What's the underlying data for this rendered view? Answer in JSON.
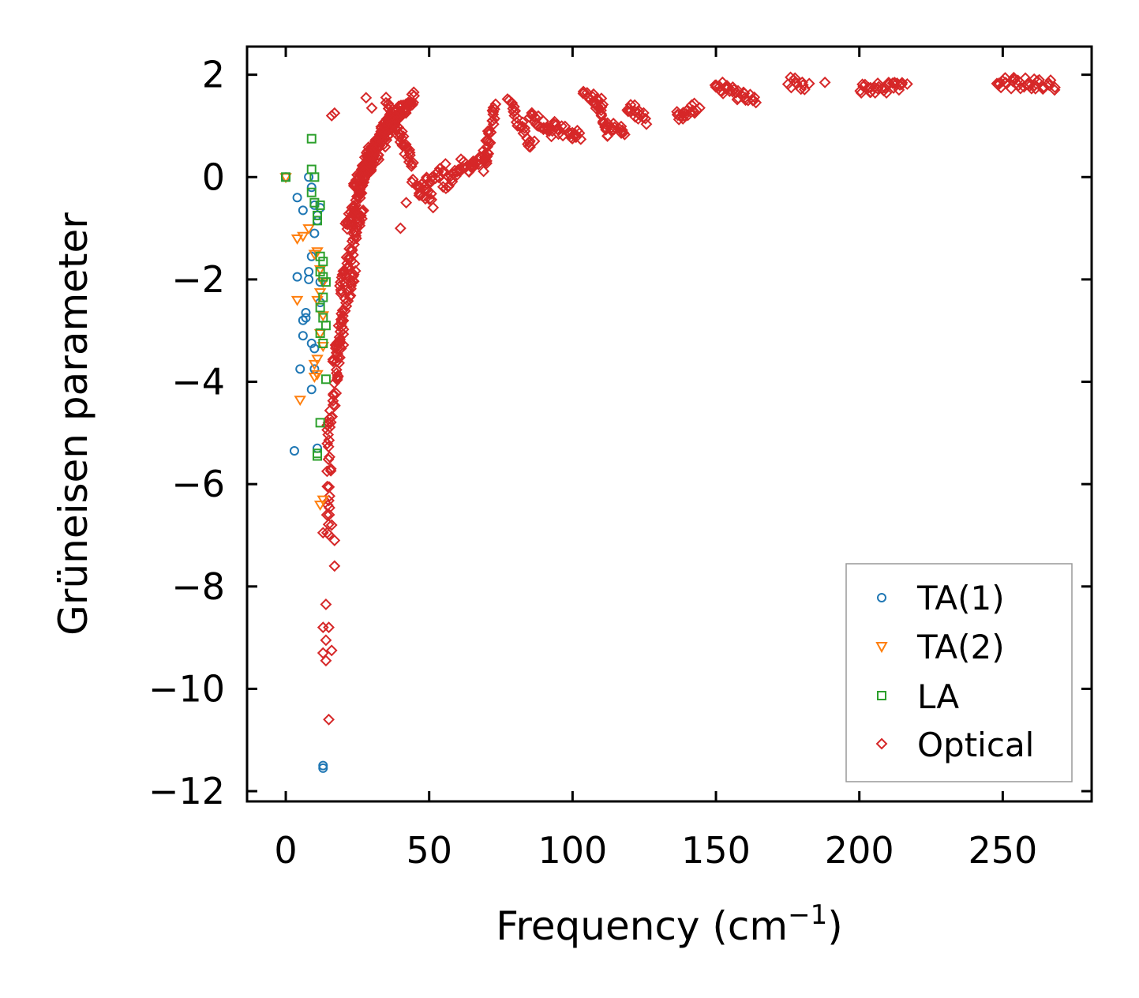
{
  "chart_data": {
    "type": "scatter",
    "title": "",
    "xlabel": "Frequency (cm",
    "xlabel_superscript": "−1",
    "xlabel_suffix": ")",
    "ylabel": "Grüneisen parameter",
    "xlim": [
      -13.5,
      281
    ],
    "ylim": [
      -12.2,
      2.55
    ],
    "xticks": [
      0,
      50,
      100,
      150,
      200,
      250
    ],
    "yticks": [
      2,
      0,
      -2,
      -4,
      -6,
      -8,
      -10,
      -12
    ],
    "ytick_labels": [
      "2",
      "0",
      "−2",
      "−4",
      "−6",
      "−8",
      "−10",
      "−12"
    ],
    "grid": false,
    "legend_position": "lower-right",
    "series": [
      {
        "name": "TA(1)",
        "marker": "circle",
        "color": "#1f77b4",
        "x": [
          0,
          4,
          6,
          8,
          9,
          10,
          11,
          12,
          11,
          10,
          9,
          8,
          4,
          12,
          7,
          7,
          6,
          6,
          9,
          10,
          10,
          5,
          9,
          8,
          3,
          11,
          13,
          13,
          12
        ],
        "y": [
          0,
          -0.4,
          -0.65,
          0,
          -0.2,
          -0.55,
          -0.75,
          -0.6,
          -0.85,
          -1.1,
          -1.55,
          -1.85,
          -1.95,
          -2.05,
          -2.65,
          -2.75,
          -2.8,
          -3.1,
          -3.25,
          -3.35,
          -3.75,
          -3.75,
          -4.15,
          -2.0,
          -5.35,
          -5.3,
          -11.5,
          -11.55,
          -2.45
        ]
      },
      {
        "name": "TA(2)",
        "marker": "triangle",
        "color": "#ff7f0e",
        "x": [
          0,
          4,
          6,
          8,
          10,
          11,
          12,
          13,
          12,
          11,
          4,
          13,
          12,
          13,
          11,
          10,
          10,
          5,
          11,
          13,
          12
        ],
        "y": [
          0,
          -1.2,
          -1.15,
          -1.0,
          -1.5,
          -1.45,
          -1.8,
          -2.05,
          -2.25,
          -2.4,
          -2.4,
          -2.7,
          -3.05,
          -3.3,
          -3.55,
          -3.65,
          -3.9,
          -4.35,
          -3.85,
          -6.3,
          -6.4
        ]
      },
      {
        "name": "LA",
        "marker": "square",
        "color": "#2ca02c",
        "x": [
          0,
          9,
          9,
          9,
          10,
          11,
          12,
          11,
          12,
          13,
          12,
          13,
          14,
          13,
          12,
          13,
          14,
          12,
          13,
          14,
          12,
          11,
          11,
          10
        ],
        "y": [
          0,
          0.75,
          0.15,
          -0.3,
          -0.5,
          -0.75,
          -0.55,
          -0.85,
          -1.55,
          -1.65,
          -1.85,
          -1.95,
          -2.05,
          -2.35,
          -2.55,
          -2.75,
          -2.9,
          -3.05,
          -3.25,
          -3.95,
          -4.8,
          -5.4,
          -5.45,
          0.0
        ]
      },
      {
        "name": "Optical",
        "marker": "diamond",
        "color": "#d62728",
        "clusters": [
          {
            "x0": 15,
            "y0": -7.0,
            "x1": 15,
            "y1": -5.0,
            "n": 20
          },
          {
            "x0": 15,
            "y0": -5.0,
            "x1": 20,
            "y1": -3.0,
            "n": 36
          },
          {
            "x0": 17,
            "y0": -3.5,
            "x1": 24,
            "y1": -1.8,
            "n": 42
          },
          {
            "x0": 19,
            "y0": -2.2,
            "x1": 27,
            "y1": -0.6,
            "n": 48
          },
          {
            "x0": 21,
            "y0": -1.0,
            "x1": 30,
            "y1": 0.3,
            "n": 52
          },
          {
            "x0": 24,
            "y0": -0.2,
            "x1": 34,
            "y1": 0.9,
            "n": 56
          },
          {
            "x0": 28,
            "y0": 0.4,
            "x1": 40,
            "y1": 1.3,
            "n": 62
          },
          {
            "x0": 33,
            "y0": 0.9,
            "x1": 45,
            "y1": 1.55,
            "n": 58
          },
          {
            "x0": 35,
            "y0": 1.45,
            "x1": 44,
            "y1": 0.25,
            "n": 44
          },
          {
            "x0": 27,
            "y0": 0.05,
            "x1": 35,
            "y1": 0.7,
            "n": 24
          },
          {
            "x0": 45,
            "y0": -0.1,
            "x1": 52,
            "y1": -0.5,
            "n": 12
          },
          {
            "x0": 46,
            "y0": -0.3,
            "x1": 55,
            "y1": 0.2,
            "n": 22
          },
          {
            "x0": 55,
            "y0": -0.2,
            "x1": 62,
            "y1": 0.3,
            "n": 18
          },
          {
            "x0": 62,
            "y0": 0.1,
            "x1": 70,
            "y1": 0.5,
            "n": 22
          },
          {
            "x0": 69,
            "y0": 0.2,
            "x1": 73,
            "y1": 1.4,
            "n": 28
          },
          {
            "x0": 78,
            "y0": 1.5,
            "x1": 86,
            "y1": 0.6,
            "n": 26
          },
          {
            "x0": 85,
            "y0": 1.2,
            "x1": 93,
            "y1": 0.9,
            "n": 22
          },
          {
            "x0": 93,
            "y0": 1.0,
            "x1": 103,
            "y1": 0.8,
            "n": 22
          },
          {
            "x0": 104,
            "y0": 1.7,
            "x1": 110,
            "y1": 1.3,
            "n": 16
          },
          {
            "x0": 109,
            "y0": 1.6,
            "x1": 112,
            "y1": 0.8,
            "n": 16
          },
          {
            "x0": 113,
            "y0": 1.0,
            "x1": 118,
            "y1": 0.9,
            "n": 12
          },
          {
            "x0": 119,
            "y0": 1.4,
            "x1": 126,
            "y1": 1.1,
            "n": 16
          },
          {
            "x0": 136,
            "y0": 1.2,
            "x1": 144,
            "y1": 1.4,
            "n": 20
          },
          {
            "x0": 149,
            "y0": 1.8,
            "x1": 164,
            "y1": 1.5,
            "n": 30
          },
          {
            "x0": 175,
            "y0": 1.85,
            "x1": 182,
            "y1": 1.8,
            "n": 12
          },
          {
            "x0": 200,
            "y0": 1.75,
            "x1": 216,
            "y1": 1.75,
            "n": 30
          },
          {
            "x0": 248,
            "y0": 1.85,
            "x1": 268,
            "y1": 1.8,
            "n": 34
          }
        ],
        "points": [
          {
            "x": 17,
            "y": -7.6
          },
          {
            "x": 14,
            "y": -8.35
          },
          {
            "x": 13,
            "y": -8.8
          },
          {
            "x": 15,
            "y": -8.8
          },
          {
            "x": 14,
            "y": -9.05
          },
          {
            "x": 16,
            "y": -9.25
          },
          {
            "x": 13,
            "y": -9.3
          },
          {
            "x": 14,
            "y": -9.45
          },
          {
            "x": 15,
            "y": -10.6
          },
          {
            "x": 17,
            "y": -7.1
          },
          {
            "x": 13,
            "y": -6.95
          },
          {
            "x": 16,
            "y": -6.8
          },
          {
            "x": 17,
            "y": 1.25
          },
          {
            "x": 28,
            "y": 1.55
          },
          {
            "x": 40,
            "y": -1.0
          },
          {
            "x": 42,
            "y": -0.5
          },
          {
            "x": 44,
            "y": -0.1
          },
          {
            "x": 188,
            "y": 1.85
          },
          {
            "x": 16,
            "y": 1.2
          },
          {
            "x": 30,
            "y": 1.35
          }
        ]
      }
    ]
  }
}
